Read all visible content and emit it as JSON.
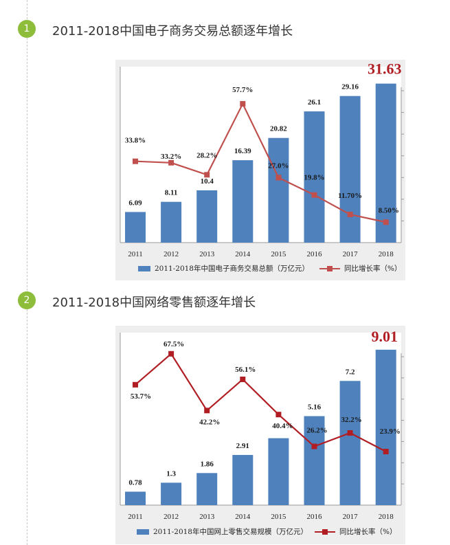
{
  "sections": [
    {
      "number": "1",
      "title": "2011-2018中国电子商务交易总额逐年增长",
      "highlight_label": "31.63",
      "colors": {
        "bar": "#4f81bd",
        "line": "#c0504d",
        "highlight": "#b01e23",
        "panel": "#eeeeee"
      },
      "chart_data": {
        "type": "bar",
        "categories": [
          "2011",
          "2012",
          "2013",
          "2014",
          "2015",
          "2016",
          "2017",
          "2018"
        ],
        "series": [
          {
            "name": "2011-2018年中国电子商务交易总额（万亿元）",
            "chart_type": "bar",
            "values": [
              6.09,
              8.11,
              10.4,
              16.39,
              20.82,
              26.1,
              29.16,
              31.63
            ],
            "labels": [
              "6.09",
              "8.11",
              "10.4",
              "16.39",
              "20.82",
              "26.1",
              "29.16",
              ""
            ]
          },
          {
            "name": "同比增长率（%）",
            "chart_type": "line",
            "values": [
              33.8,
              33.2,
              28.2,
              57.7,
              27.0,
              19.8,
              11.7,
              8.5
            ],
            "labels": [
              "33.8%",
              "33.2%",
              "28.2%",
              "57.7%",
              "27.0%",
              "19.8%",
              "11.70%",
              "8.50%"
            ]
          }
        ],
        "legend": "bottom"
      }
    },
    {
      "number": "2",
      "title": "2011-2018中国网络零售额逐年增长",
      "highlight_label": "9.01",
      "colors": {
        "bar": "#4f81bd",
        "line": "#b01e23",
        "highlight": "#b01e23",
        "panel": "#eeeeee"
      },
      "chart_data": {
        "type": "bar",
        "categories": [
          "2011",
          "2012",
          "2013",
          "2014",
          "2015",
          "2016",
          "2017",
          "2018"
        ],
        "series": [
          {
            "name": "2011-2018年中国网上零售交易规模（万亿元）",
            "chart_type": "bar",
            "values": [
              0.78,
              1.3,
              1.86,
              2.91,
              3.88,
              5.16,
              7.2,
              9.01
            ],
            "labels": [
              "0.78",
              "1.3",
              "1.86",
              "2.91",
              "",
              "5.16",
              "7.2",
              ""
            ]
          },
          {
            "name": "同比增长率（%）",
            "chart_type": "line",
            "values": [
              53.7,
              67.5,
              42.2,
              56.1,
              40.4,
              26.2,
              32.2,
              23.9
            ],
            "labels": [
              "53.7%",
              "67.5%",
              "42.2%",
              "56.1%",
              "40.4%",
              "26.2%",
              "32.2%",
              "23.9%"
            ]
          }
        ],
        "legend": "bottom"
      }
    }
  ]
}
